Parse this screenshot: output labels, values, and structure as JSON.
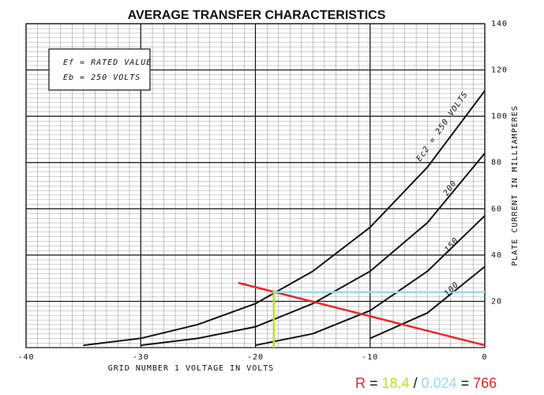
{
  "chart_data": {
    "type": "line",
    "title": "AVERAGE TRANSFER CHARACTERISTICS",
    "xlabel": "GRID NUMBER 1 VOLTAGE IN VOLTS",
    "ylabel": "PLATE CURRENT IN MILLIAMPERES",
    "notes": [
      "Ef = RATED VALUE",
      "Eb = 250 VOLTS"
    ],
    "x": [
      -35,
      -30,
      -25,
      -20,
      -15,
      -10,
      -5,
      0
    ],
    "series": [
      {
        "name": "Ec2 = 250 VOLTS",
        "color": "#111111",
        "values": [
          1,
          4,
          10,
          19,
          33,
          52,
          78,
          111
        ]
      },
      {
        "name": "200",
        "color": "#111111",
        "values": [
          null,
          1,
          4,
          9,
          19,
          33,
          54,
          84
        ]
      },
      {
        "name": "150",
        "color": "#111111",
        "values": [
          null,
          null,
          null,
          1,
          6,
          16,
          33,
          57
        ]
      },
      {
        "name": "100",
        "color": "#111111",
        "values": [
          null,
          null,
          null,
          null,
          null,
          4,
          15,
          35
        ]
      }
    ],
    "lines": [
      {
        "color": "#e8262b",
        "x": [
          -21.5,
          0
        ],
        "y": [
          28,
          1
        ]
      },
      {
        "color": "#b5e61d",
        "x": [
          -18.4,
          -18.4
        ],
        "y": [
          0,
          25
        ]
      },
      {
        "color": "#99d9ea",
        "x": [
          -18.4,
          0
        ],
        "y": [
          24,
          24
        ]
      }
    ],
    "formula": [
      {
        "text": "R",
        "color": "#e8262b"
      },
      {
        "text": "=",
        "color": "#111111"
      },
      {
        "text": "18.4",
        "color": "#b5e61d"
      },
      {
        "text": "/",
        "color": "#111111"
      },
      {
        "text": "0.024",
        "color": "#99d9ea"
      },
      {
        "text": "=",
        "color": "#111111"
      },
      {
        "text": "766",
        "color": "#e8262b"
      }
    ],
    "xlim": [
      -40,
      0
    ],
    "ylim": [
      0,
      140
    ],
    "xticks": [
      -40,
      -30,
      -20,
      -10,
      0
    ],
    "yticks": [
      20,
      40,
      60,
      80,
      100,
      120,
      140
    ],
    "grid": true
  }
}
